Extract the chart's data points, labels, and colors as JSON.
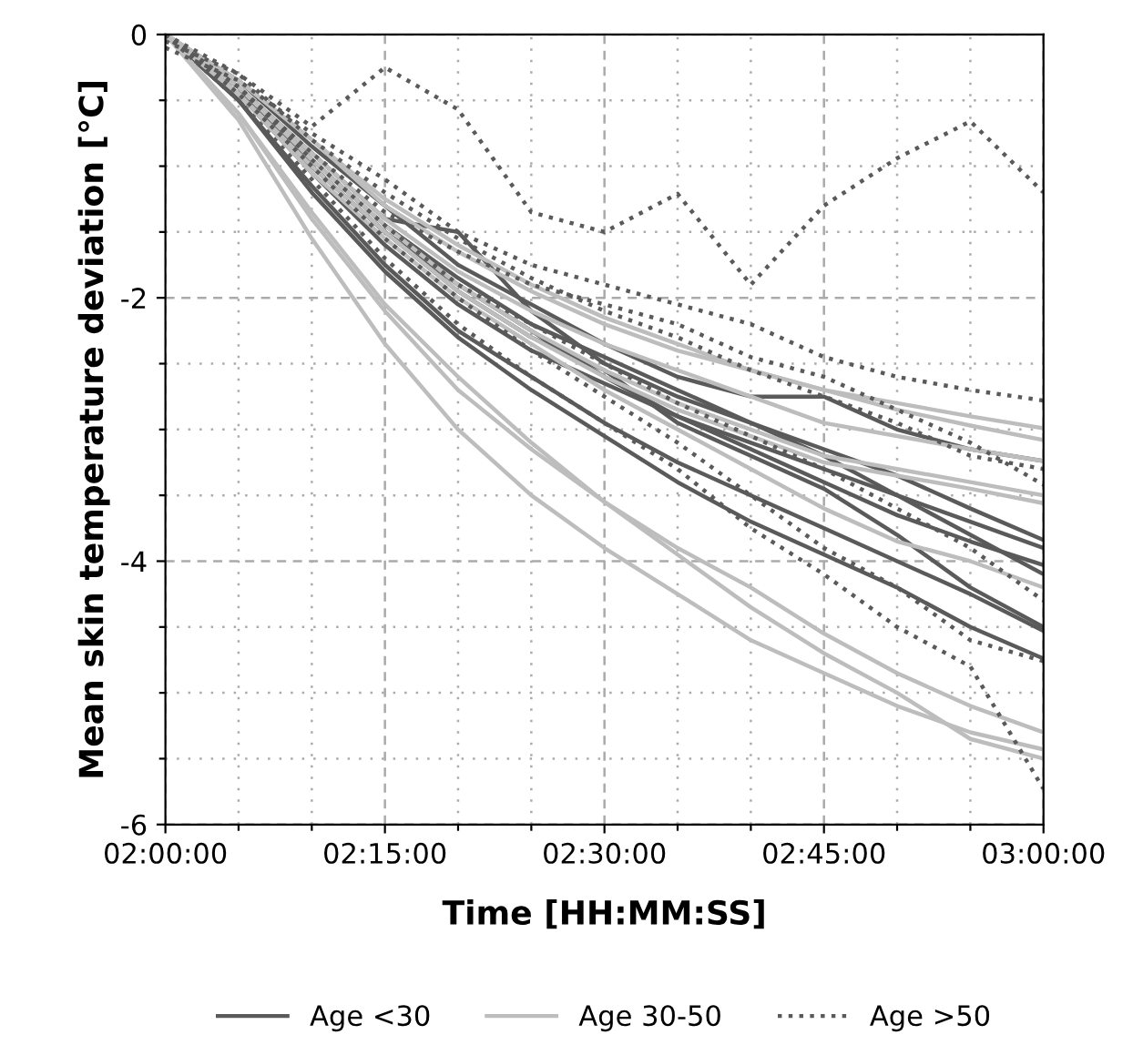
{
  "chart_data": {
    "type": "line",
    "xlabel": "Time [HH:MM:SS]",
    "ylabel": "Mean skin temperature deviation [°C]",
    "x": [
      2.0,
      2.0833,
      2.1667,
      2.25,
      2.3333,
      2.4167,
      2.5,
      2.5833,
      2.6667,
      2.75,
      2.8333,
      2.9167,
      3.0
    ],
    "xlim": [
      2.0,
      3.0
    ],
    "xticks": [
      {
        "value": 2.0,
        "label": "02:00:00"
      },
      {
        "value": 2.0833,
        "label": null
      },
      {
        "value": 2.1667,
        "label": null
      },
      {
        "value": 2.25,
        "label": "02:15:00"
      },
      {
        "value": 2.3333,
        "label": null
      },
      {
        "value": 2.4167,
        "label": null
      },
      {
        "value": 2.5,
        "label": "02:30:00"
      },
      {
        "value": 2.5833,
        "label": null
      },
      {
        "value": 2.6667,
        "label": null
      },
      {
        "value": 2.75,
        "label": "02:45:00"
      },
      {
        "value": 2.8333,
        "label": null
      },
      {
        "value": 2.9167,
        "label": null
      },
      {
        "value": 3.0,
        "label": "03:00:00"
      }
    ],
    "ylim": [
      -6,
      0
    ],
    "yticks": [
      -6,
      {
        "value": -5.5,
        "label": null
      },
      {
        "value": -5,
        "label": null
      },
      {
        "value": -4.5,
        "label": null
      },
      -4,
      {
        "value": -3.5,
        "label": null
      },
      {
        "value": -3,
        "label": null
      },
      {
        "value": -2.5,
        "label": null
      },
      -2,
      {
        "value": -1.5,
        "label": null
      },
      {
        "value": -1,
        "label": null
      },
      {
        "value": -0.5,
        "label": null
      },
      0
    ],
    "grid": true,
    "legend": "bottom",
    "series": [
      {
        "name": "Age <30",
        "color": "#5a5a5a",
        "line_style": "solid",
        "values": [
          0,
          -0.4,
          -0.95,
          -1.45,
          -1.85,
          -2.2,
          -2.45,
          -2.7,
          -2.95,
          -3.15,
          -3.35,
          -3.6,
          -3.84
        ]
      },
      {
        "color": "#5a5a5a",
        "line_style": "solid",
        "values": [
          0,
          -0.45,
          -1.05,
          -1.6,
          -2.05,
          -2.4,
          -2.65,
          -2.9,
          -3.15,
          -3.4,
          -3.65,
          -3.85,
          -4.03
        ]
      },
      {
        "color": "#5a5a5a",
        "line_style": "solid",
        "values": [
          0,
          -0.5,
          -1.15,
          -1.75,
          -2.25,
          -2.6,
          -2.95,
          -3.25,
          -3.5,
          -3.75,
          -4.0,
          -4.25,
          -4.53
        ]
      },
      {
        "color": "#5a5a5a",
        "line_style": "solid",
        "values": [
          0,
          -0.5,
          -1.2,
          -1.8,
          -2.3,
          -2.7,
          -3.05,
          -3.4,
          -3.7,
          -3.95,
          -4.2,
          -4.5,
          -4.74
        ]
      },
      {
        "color": "#5a5a5a",
        "line_style": "solid",
        "values": [
          0,
          -0.4,
          -0.9,
          -1.4,
          -1.5,
          -2.1,
          -2.5,
          -2.75,
          -2.95,
          -3.2,
          -3.5,
          -3.8,
          -4.1
        ]
      },
      {
        "color": "#5a5a5a",
        "line_style": "solid",
        "values": [
          0,
          -0.45,
          -1.0,
          -1.5,
          -1.95,
          -2.3,
          -2.55,
          -2.95,
          -3.2,
          -3.45,
          -3.8,
          -4.2,
          -4.5
        ]
      },
      {
        "color": "#5a5a5a",
        "line_style": "solid",
        "values": [
          0,
          -0.35,
          -0.85,
          -1.3,
          -1.75,
          -2.05,
          -2.35,
          -2.6,
          -2.75,
          -2.75,
          -3.0,
          -3.15,
          -3.24
        ]
      },
      {
        "color": "#5a5a5a",
        "line_style": "solid",
        "values": [
          0,
          -0.4,
          -1.0,
          -1.5,
          -1.9,
          -2.25,
          -2.6,
          -2.9,
          -3.1,
          -3.3,
          -3.5,
          -3.7,
          -3.9
        ]
      },
      {
        "name": "Age 30-50",
        "color": "#bdbdbd",
        "line_style": "solid",
        "values": [
          0,
          -0.35,
          -0.8,
          -1.3,
          -1.65,
          -1.95,
          -2.2,
          -2.4,
          -2.55,
          -2.7,
          -2.8,
          -2.9,
          -2.99
        ]
      },
      {
        "color": "#bdbdbd",
        "line_style": "solid",
        "values": [
          0,
          -0.4,
          -0.9,
          -1.4,
          -1.8,
          -2.1,
          -2.35,
          -2.55,
          -2.75,
          -2.95,
          -3.05,
          -3.15,
          -3.24
        ]
      },
      {
        "color": "#bdbdbd",
        "line_style": "solid",
        "values": [
          0,
          -0.4,
          -0.95,
          -1.45,
          -1.9,
          -2.25,
          -2.55,
          -2.8,
          -3.0,
          -3.2,
          -3.3,
          -3.4,
          -3.5
        ]
      },
      {
        "color": "#bdbdbd",
        "line_style": "solid",
        "values": [
          0,
          -0.45,
          -1.05,
          -1.55,
          -2.0,
          -2.35,
          -2.7,
          -3.0,
          -3.3,
          -3.6,
          -3.85,
          -4.0,
          -4.2
        ]
      },
      {
        "color": "#bdbdbd",
        "line_style": "solid",
        "values": [
          0,
          -0.6,
          -1.4,
          -2.1,
          -2.7,
          -3.15,
          -3.55,
          -3.9,
          -4.2,
          -4.55,
          -4.85,
          -5.1,
          -5.3
        ]
      },
      {
        "color": "#bdbdbd",
        "line_style": "solid",
        "values": [
          0,
          -0.6,
          -1.35,
          -2.05,
          -2.6,
          -3.1,
          -3.55,
          -3.95,
          -4.35,
          -4.7,
          -5.0,
          -5.35,
          -5.5
        ]
      },
      {
        "color": "#bdbdbd",
        "line_style": "solid",
        "values": [
          0,
          -0.65,
          -1.55,
          -2.35,
          -3.0,
          -3.5,
          -3.9,
          -4.25,
          -4.6,
          -4.85,
          -5.1,
          -5.3,
          -5.43
        ]
      },
      {
        "color": "#bdbdbd",
        "line_style": "solid",
        "values": [
          0,
          -0.45,
          -1.0,
          -1.5,
          -1.95,
          -2.3,
          -2.6,
          -2.85,
          -3.05,
          -3.25,
          -3.35,
          -3.45,
          -3.56
        ]
      },
      {
        "color": "#bdbdbd",
        "line_style": "solid",
        "values": [
          0,
          -0.35,
          -0.8,
          -1.25,
          -1.6,
          -1.9,
          -2.15,
          -2.35,
          -2.55,
          -2.7,
          -2.85,
          -2.97,
          -3.08
        ]
      },
      {
        "name": "Age >50",
        "color": "#5a5a5a",
        "line_style": "dotted",
        "values": [
          -0.05,
          -0.3,
          -0.7,
          -0.25,
          -0.57,
          -1.35,
          -1.5,
          -1.21,
          -1.9,
          -1.3,
          -0.94,
          -0.66,
          -1.2
        ]
      },
      {
        "color": "#5a5a5a",
        "line_style": "dotted",
        "values": [
          -0.1,
          -0.35,
          -0.75,
          -1.1,
          -1.5,
          -1.75,
          -1.9,
          -2.05,
          -2.2,
          -2.45,
          -2.6,
          -2.7,
          -2.78
        ]
      },
      {
        "color": "#5a5a5a",
        "line_style": "dotted",
        "values": [
          0,
          -0.4,
          -0.9,
          -1.35,
          -1.65,
          -1.9,
          -2.05,
          -2.2,
          -2.45,
          -2.6,
          -2.85,
          -3.1,
          -3.42
        ]
      },
      {
        "color": "#5a5a5a",
        "line_style": "dotted",
        "values": [
          0,
          -0.45,
          -1.0,
          -1.55,
          -2.0,
          -2.4,
          -2.75,
          -3.1,
          -3.5,
          -3.9,
          -4.2,
          -4.6,
          -4.76
        ]
      },
      {
        "color": "#5a5a5a",
        "line_style": "dotted",
        "values": [
          0,
          -0.5,
          -1.1,
          -1.7,
          -2.2,
          -2.6,
          -2.95,
          -3.3,
          -3.75,
          -4.1,
          -4.5,
          -4.8,
          -5.73
        ]
      },
      {
        "color": "#5a5a5a",
        "line_style": "dotted",
        "values": [
          0,
          -0.4,
          -0.95,
          -1.45,
          -1.9,
          -2.2,
          -2.5,
          -2.8,
          -3.05,
          -3.3,
          -3.6,
          -3.9,
          -4.3
        ]
      },
      {
        "color": "#5a5a5a",
        "line_style": "dotted",
        "values": [
          0,
          -0.3,
          -0.8,
          -1.2,
          -1.55,
          -1.85,
          -2.1,
          -2.3,
          -2.55,
          -2.75,
          -2.95,
          -3.2,
          -3.3
        ]
      }
    ]
  }
}
